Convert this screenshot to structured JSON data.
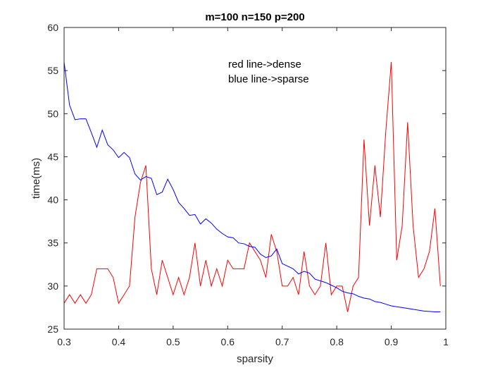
{
  "chart_data": {
    "type": "line",
    "title": "m=100 n=150 p=200",
    "xlabel": "sparsity",
    "ylabel": "time(ms)",
    "xlim": [
      0.3,
      1.0
    ],
    "ylim": [
      25,
      60
    ],
    "x_ticks": [
      0.3,
      0.4,
      0.5,
      0.6,
      0.7,
      0.8,
      0.9,
      1.0
    ],
    "x_tick_labels": [
      "0.3",
      "0.4",
      "0.5",
      "0.6",
      "0.7",
      "0.8",
      "0.9",
      "1"
    ],
    "y_ticks": [
      25,
      30,
      35,
      40,
      45,
      50,
      55,
      60
    ],
    "y_tick_labels": [
      "25",
      "30",
      "35",
      "40",
      "45",
      "50",
      "55",
      "60"
    ],
    "grid": false,
    "annotations": [
      "red line->dense",
      "blue line->sparse"
    ],
    "x": [
      0.3,
      0.31,
      0.32,
      0.33,
      0.34,
      0.35,
      0.36,
      0.37,
      0.38,
      0.39,
      0.4,
      0.41,
      0.42,
      0.43,
      0.44,
      0.45,
      0.46,
      0.47,
      0.48,
      0.49,
      0.5,
      0.51,
      0.52,
      0.53,
      0.54,
      0.55,
      0.56,
      0.57,
      0.58,
      0.59,
      0.6,
      0.61,
      0.62,
      0.63,
      0.64,
      0.65,
      0.66,
      0.67,
      0.68,
      0.69,
      0.7,
      0.71,
      0.72,
      0.73,
      0.74,
      0.75,
      0.76,
      0.77,
      0.78,
      0.79,
      0.8,
      0.81,
      0.82,
      0.83,
      0.84,
      0.85,
      0.86,
      0.87,
      0.88,
      0.89,
      0.9,
      0.91,
      0.92,
      0.93,
      0.94,
      0.95,
      0.96,
      0.97,
      0.98,
      0.99
    ],
    "series": [
      {
        "color": "#ff0000",
        "values": [
          28,
          29,
          28,
          29,
          28,
          29,
          32,
          32,
          32,
          31,
          28,
          29,
          30,
          38,
          42,
          44,
          32,
          29,
          33,
          31,
          29,
          31,
          29,
          31,
          35,
          30,
          33,
          30,
          32,
          30,
          33,
          32,
          32,
          32,
          35,
          34,
          33,
          31,
          36,
          34,
          30,
          30,
          31,
          29,
          34,
          30,
          29,
          30,
          35,
          29,
          30,
          30,
          27,
          30,
          31,
          47,
          37,
          44,
          38,
          48,
          56,
          33,
          37,
          49,
          37,
          31,
          32,
          34,
          39,
          30
        ]
      },
      {
        "color": "#0000ff",
        "values": [
          56,
          51,
          49.3,
          49.4,
          49.4,
          47.8,
          46.1,
          48.1,
          46.4,
          45.8,
          44.9,
          45.5,
          44.9,
          43,
          42.3,
          42.7,
          42.5,
          40.6,
          40.9,
          42.4,
          41.2,
          39.7,
          39,
          38.2,
          38.3,
          37.2,
          37.8,
          37.3,
          36.6,
          36.1,
          35.7,
          35.6,
          35,
          34.9,
          34.6,
          34.5,
          33.7,
          33.3,
          33.5,
          34.3,
          32.6,
          32.3,
          32,
          31.4,
          31.7,
          31.5,
          30.8,
          30.6,
          30.4,
          30.1,
          29.8,
          29.4,
          29.2,
          29.1,
          28.8,
          28.6,
          28.5,
          28.2,
          28.1,
          27.9,
          27.7,
          27.6,
          27.5,
          27.4,
          27.3,
          27.2,
          27.1,
          27.05,
          27,
          27
        ]
      }
    ]
  }
}
